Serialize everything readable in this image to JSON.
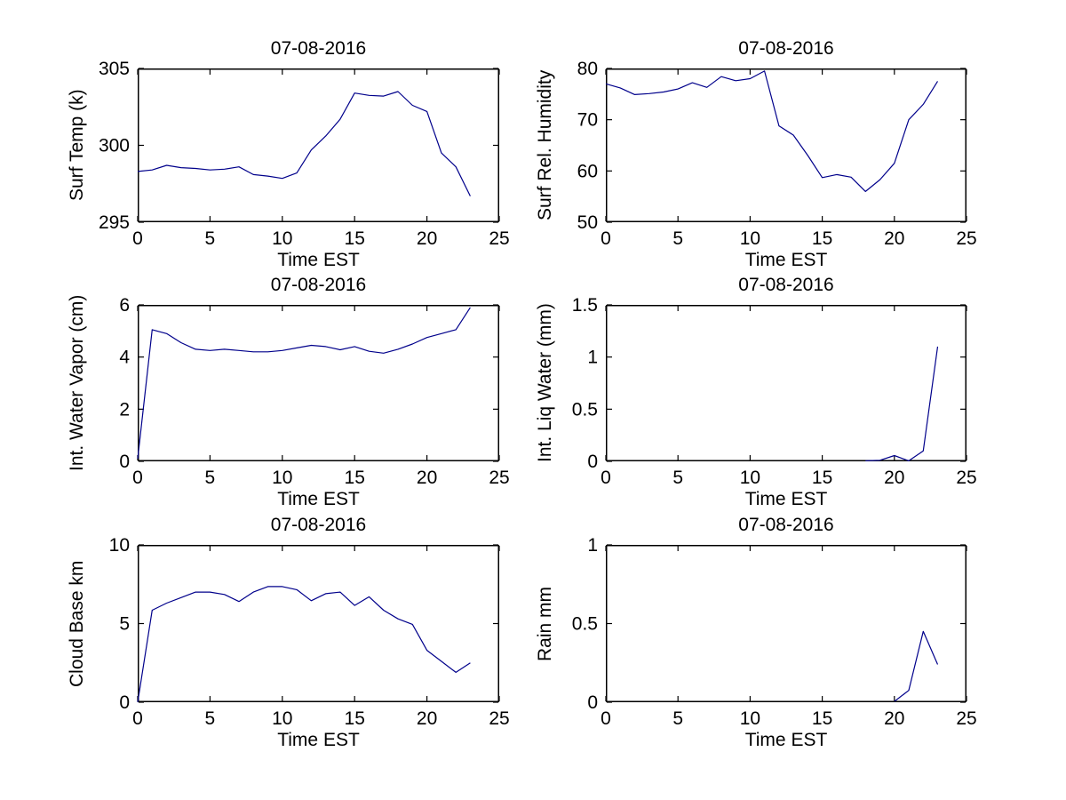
{
  "figure": {
    "background": "#ffffff"
  },
  "style": {
    "line_color": "#00008b",
    "axis_color": "#000000",
    "text_color": "#000000",
    "tick_length": 6
  },
  "chart_data": [
    {
      "id": "surf-temp",
      "type": "line",
      "title": "07-08-2016",
      "xlabel": "Time EST",
      "ylabel": "Surf Temp (k)",
      "xlim": [
        0,
        25
      ],
      "ylim": [
        295,
        305
      ],
      "xticks": [
        0,
        5,
        10,
        15,
        20,
        25
      ],
      "yticks": [
        295,
        300,
        305
      ],
      "grid": false,
      "legend": "none",
      "x": [
        0,
        1,
        2,
        3,
        4,
        5,
        6,
        7,
        8,
        9,
        10,
        11,
        12,
        13,
        14,
        15,
        16,
        17,
        18,
        19,
        20,
        21,
        22,
        23
      ],
      "y": [
        298.3,
        298.4,
        298.7,
        298.55,
        298.5,
        298.4,
        298.45,
        298.6,
        298.1,
        298.0,
        297.85,
        298.2,
        299.7,
        300.6,
        301.7,
        303.4,
        303.25,
        303.2,
        303.5,
        302.6,
        302.2,
        299.5,
        298.6,
        296.7
      ]
    },
    {
      "id": "surf-rel-humidity",
      "type": "line",
      "title": "07-08-2016",
      "xlabel": "Time EST",
      "ylabel": "Surf Rel. Humidity",
      "xlim": [
        0,
        25
      ],
      "ylim": [
        50,
        80
      ],
      "xticks": [
        0,
        5,
        10,
        15,
        20,
        25
      ],
      "yticks": [
        50,
        60,
        70,
        80
      ],
      "grid": false,
      "legend": "none",
      "x": [
        0,
        1,
        2,
        3,
        4,
        5,
        6,
        7,
        8,
        9,
        10,
        11,
        12,
        13,
        14,
        15,
        16,
        17,
        18,
        19,
        20,
        21,
        22,
        23
      ],
      "y": [
        77.0,
        76.2,
        74.9,
        75.1,
        75.4,
        76.0,
        77.2,
        76.3,
        78.4,
        77.6,
        78.0,
        79.5,
        68.8,
        67.0,
        63.0,
        58.7,
        59.3,
        58.8,
        56.0,
        58.3,
        61.5,
        70.0,
        73.0,
        77.5
      ]
    },
    {
      "id": "int-water-vapor",
      "type": "line",
      "title": "07-08-2016",
      "xlabel": "Time EST",
      "ylabel": "Int. Water Vapor (cm)",
      "xlim": [
        0,
        25
      ],
      "ylim": [
        0,
        6
      ],
      "xticks": [
        0,
        5,
        10,
        15,
        20,
        25
      ],
      "yticks": [
        0,
        2,
        4,
        6
      ],
      "grid": false,
      "legend": "none",
      "x": [
        0,
        1,
        2,
        3,
        4,
        5,
        6,
        7,
        8,
        9,
        10,
        11,
        12,
        13,
        14,
        15,
        16,
        17,
        18,
        19,
        20,
        21,
        22,
        23
      ],
      "y": [
        0.1,
        5.05,
        4.9,
        4.55,
        4.3,
        4.25,
        4.3,
        4.25,
        4.2,
        4.2,
        4.25,
        4.35,
        4.45,
        4.4,
        4.28,
        4.4,
        4.22,
        4.15,
        4.3,
        4.5,
        4.75,
        4.9,
        5.05,
        5.9
      ]
    },
    {
      "id": "int-liq-water",
      "type": "line",
      "title": "07-08-2016",
      "xlabel": "Time EST",
      "ylabel": "Int. Liq Water (mm)",
      "xlim": [
        0,
        25
      ],
      "ylim": [
        0,
        1.5
      ],
      "xticks": [
        0,
        5,
        10,
        15,
        20,
        25
      ],
      "yticks": [
        0,
        0.5,
        1,
        1.5
      ],
      "grid": false,
      "legend": "none",
      "x": [
        0,
        1,
        2,
        3,
        4,
        5,
        6,
        7,
        8,
        9,
        10,
        11,
        12,
        13,
        14,
        15,
        16,
        17,
        18,
        19,
        20,
        21,
        22,
        23
      ],
      "y": [
        null,
        null,
        null,
        null,
        null,
        null,
        null,
        null,
        null,
        null,
        null,
        null,
        null,
        null,
        null,
        null,
        null,
        null,
        0.005,
        0.01,
        0.055,
        0.005,
        0.1,
        1.1
      ]
    },
    {
      "id": "cloud-base",
      "type": "line",
      "title": "07-08-2016",
      "xlabel": "Time EST",
      "ylabel": "Cloud Base km",
      "xlim": [
        0,
        25
      ],
      "ylim": [
        0,
        10
      ],
      "xticks": [
        0,
        5,
        10,
        15,
        20,
        25
      ],
      "yticks": [
        0,
        5,
        10
      ],
      "grid": false,
      "legend": "none",
      "x": [
        0,
        1,
        2,
        3,
        4,
        5,
        6,
        7,
        8,
        9,
        10,
        11,
        12,
        13,
        14,
        15,
        16,
        17,
        18,
        19,
        20,
        21,
        22,
        23
      ],
      "y": [
        0.0,
        5.85,
        6.3,
        6.65,
        7.0,
        7.0,
        6.85,
        6.4,
        7.0,
        7.35,
        7.35,
        7.15,
        6.45,
        6.9,
        7.0,
        6.15,
        6.7,
        5.85,
        5.3,
        4.95,
        3.3,
        2.6,
        1.9,
        2.5
      ]
    },
    {
      "id": "rain",
      "type": "line",
      "title": "07-08-2016",
      "xlabel": "Time EST",
      "ylabel": "Rain mm",
      "xlim": [
        0,
        25
      ],
      "ylim": [
        0,
        1
      ],
      "xticks": [
        0,
        5,
        10,
        15,
        20,
        25
      ],
      "yticks": [
        0,
        0.5,
        1
      ],
      "grid": false,
      "legend": "none",
      "x": [
        0,
        1,
        2,
        3,
        4,
        5,
        6,
        7,
        8,
        9,
        10,
        11,
        12,
        13,
        14,
        15,
        16,
        17,
        18,
        19,
        20,
        21,
        22,
        23
      ],
      "y": [
        null,
        null,
        null,
        null,
        null,
        null,
        null,
        null,
        null,
        null,
        null,
        null,
        null,
        null,
        null,
        null,
        null,
        null,
        null,
        null,
        0.005,
        0.075,
        0.45,
        0.24
      ]
    }
  ]
}
